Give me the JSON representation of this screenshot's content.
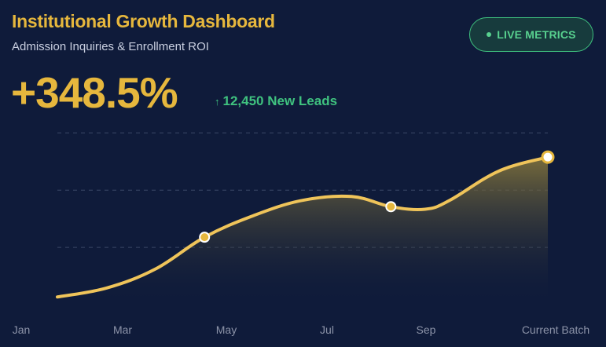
{
  "header": {
    "title": "Institutional Growth Dashboard",
    "subtitle": "Admission Inquiries & Enrollment ROI"
  },
  "badge": {
    "label": "LIVE METRICS",
    "color": "#58d18f"
  },
  "kpi": {
    "value": "+348.5%",
    "delta_arrow": "↑",
    "delta_label": "12,450 New Leads"
  },
  "colors": {
    "accent": "#e6b73d",
    "positive": "#3fc27f",
    "background": "#0f1b3a"
  },
  "chart_data": {
    "type": "area",
    "categories": [
      "Jan",
      "Mar",
      "May",
      "Jul",
      "Sep",
      "Current Batch"
    ],
    "x": [
      0,
      0.5,
      1,
      1.5,
      2,
      2.5,
      3,
      3.4,
      3.75,
      4,
      4.5,
      5
    ],
    "values": [
      6,
      13,
      28,
      53,
      70,
      82,
      85,
      77,
      75,
      82,
      105,
      116
    ],
    "highlight_index": [
      3,
      7,
      11
    ],
    "ylim": [
      0,
      150
    ],
    "gridlines": [
      45,
      90,
      135
    ],
    "grid": true,
    "legend": "none"
  }
}
